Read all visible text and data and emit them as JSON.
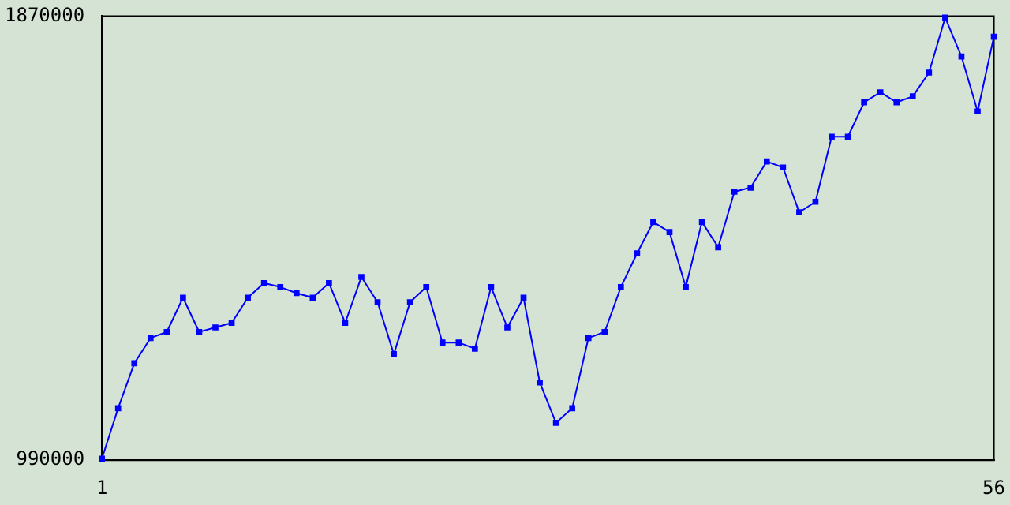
{
  "chart_data": {
    "type": "line",
    "x": [
      1,
      2,
      3,
      4,
      5,
      6,
      7,
      8,
      9,
      10,
      11,
      12,
      13,
      14,
      15,
      16,
      17,
      18,
      19,
      20,
      21,
      22,
      23,
      24,
      25,
      26,
      27,
      28,
      29,
      30,
      31,
      32,
      33,
      34,
      35,
      36,
      37,
      38,
      39,
      40,
      41,
      42,
      43,
      44,
      45,
      46,
      47,
      48,
      49,
      50,
      51,
      52,
      53,
      54,
      55,
      56
    ],
    "series": [
      {
        "color": "#0000ff",
        "values": [
          993000,
          1093000,
          1182000,
          1232000,
          1244000,
          1312000,
          1244000,
          1253000,
          1262000,
          1312000,
          1341000,
          1333000,
          1321000,
          1312000,
          1341000,
          1262000,
          1353000,
          1303000,
          1200000,
          1303000,
          1333000,
          1223000,
          1223000,
          1211000,
          1333000,
          1253000,
          1312000,
          1144000,
          1064000,
          1093000,
          1232000,
          1244000,
          1333000,
          1400000,
          1462000,
          1442000,
          1333000,
          1462000,
          1412000,
          1522000,
          1530000,
          1582000,
          1570000,
          1481000,
          1502000,
          1631000,
          1631000,
          1699000,
          1719000,
          1699000,
          1711000,
          1758000,
          1867000,
          1790000,
          1681000,
          1829000
        ]
      }
    ],
    "xlim": [
      1,
      56
    ],
    "xticks": [
      1,
      56
    ],
    "ylim": [
      990000,
      1870000
    ],
    "yticks": [
      990000,
      1870000
    ],
    "grid": false,
    "legend": false,
    "marker": "square",
    "line_style": "solid"
  }
}
